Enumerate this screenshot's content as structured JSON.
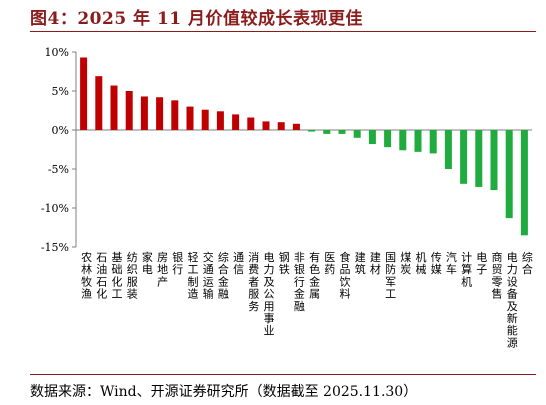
{
  "title": "图4：2025 年 11 月价值较成长表现更佳",
  "source": "数据来源：Wind、开源证券研究所（数据截至 2025.11.30）",
  "colors": {
    "positive": "#c00000",
    "negative": "#1fab3e",
    "title": "#8a1c1c"
  },
  "chart_data": {
    "type": "bar",
    "title": "",
    "xlabel": "",
    "ylabel": "",
    "ylim": [
      -15,
      10
    ],
    "yticks": [
      10,
      5,
      0,
      -5,
      -10,
      -15
    ],
    "ytick_labels": [
      "10%",
      "5%",
      "0%",
      "-5%",
      "-10%",
      "-15%"
    ],
    "grid": false,
    "legend": "none",
    "categories": [
      "农林牧渔",
      "石油石化",
      "基础化工",
      "纺织服装",
      "家电",
      "房地产",
      "银行",
      "轻工制造",
      "交通运输",
      "综合金融",
      "通信",
      "消费者服务",
      "电力及公用事业",
      "钢铁",
      "非银行金融",
      "有色金属",
      "医药",
      "食品饮料",
      "建筑",
      "建材",
      "国防军工",
      "煤炭",
      "机械",
      "传媒",
      "汽车",
      "计算机",
      "电子",
      "商贸零售",
      "电力设备及新能源",
      "综合"
    ],
    "values": [
      9.3,
      6.9,
      5.7,
      5.0,
      4.3,
      4.2,
      3.8,
      3.0,
      2.6,
      2.4,
      2.0,
      1.6,
      1.1,
      1.0,
      0.8,
      -0.2,
      -0.5,
      -0.5,
      -1.0,
      -1.8,
      -2.2,
      -2.6,
      -2.8,
      -3.0,
      -5.0,
      -6.9,
      -7.3,
      -7.7,
      -11.3,
      -13.5
    ]
  }
}
